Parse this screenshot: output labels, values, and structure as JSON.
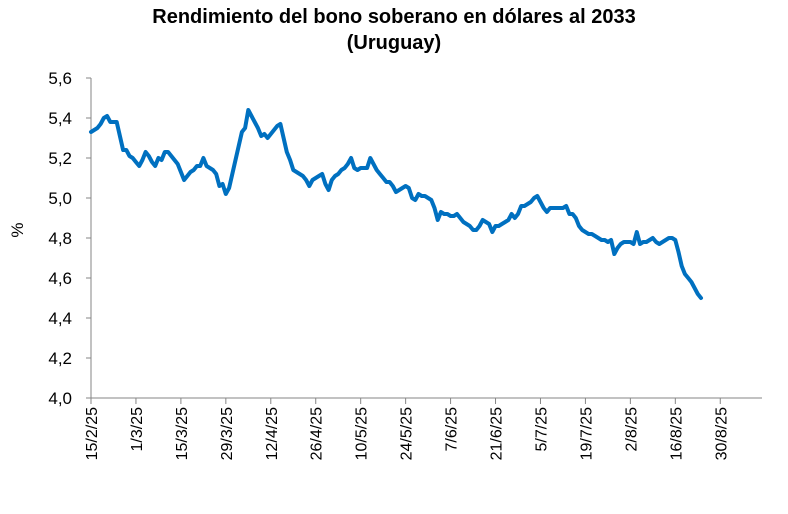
{
  "chart_data": {
    "type": "line",
    "title_line1": "Rendimiento del bono soberano en dólares al 2033",
    "title_line2": "(Uruguay)",
    "xlabel": "",
    "ylabel": "%",
    "ylim": [
      4.0,
      5.6
    ],
    "yticks": [
      "4,0",
      "4,2",
      "4,4",
      "4,6",
      "4,8",
      "5,0",
      "5,2",
      "5,4",
      "5,6"
    ],
    "xticks": [
      "15/2/25",
      "1/3/25",
      "15/3/25",
      "29/3/25",
      "12/4/25",
      "26/4/25",
      "10/5/25",
      "24/5/25",
      "7/6/25",
      "21/6/25",
      "5/7/25",
      "19/7/25",
      "2/8/25",
      "16/8/25",
      "30/8/25"
    ],
    "xtick_days": [
      0,
      14,
      28,
      42,
      56,
      70,
      84,
      98,
      112,
      126,
      140,
      154,
      168,
      182,
      196
    ],
    "x_range_days": [
      0,
      209
    ],
    "grid": false,
    "legend": "none",
    "series": [
      {
        "color": "#0070C0",
        "points": [
          [
            0,
            5.33
          ],
          [
            1,
            5.34
          ],
          [
            2,
            5.35
          ],
          [
            3,
            5.37
          ],
          [
            4,
            5.4
          ],
          [
            5,
            5.41
          ],
          [
            6,
            5.38
          ],
          [
            7,
            5.38
          ],
          [
            8,
            5.38
          ],
          [
            9,
            5.31
          ],
          [
            10,
            5.24
          ],
          [
            11,
            5.24
          ],
          [
            12,
            5.21
          ],
          [
            13,
            5.2
          ],
          [
            14,
            5.18
          ],
          [
            15,
            5.16
          ],
          [
            16,
            5.19
          ],
          [
            17,
            5.23
          ],
          [
            18,
            5.21
          ],
          [
            19,
            5.18
          ],
          [
            20,
            5.16
          ],
          [
            21,
            5.2
          ],
          [
            22,
            5.19
          ],
          [
            23,
            5.23
          ],
          [
            24,
            5.23
          ],
          [
            25,
            5.21
          ],
          [
            26,
            5.19
          ],
          [
            27,
            5.17
          ],
          [
            28,
            5.13
          ],
          [
            29,
            5.09
          ],
          [
            30,
            5.11
          ],
          [
            31,
            5.13
          ],
          [
            32,
            5.14
          ],
          [
            33,
            5.16
          ],
          [
            34,
            5.16
          ],
          [
            35,
            5.2
          ],
          [
            36,
            5.16
          ],
          [
            37,
            5.15
          ],
          [
            38,
            5.14
          ],
          [
            39,
            5.12
          ],
          [
            40,
            5.06
          ],
          [
            41,
            5.07
          ],
          [
            42,
            5.02
          ],
          [
            43,
            5.05
          ],
          [
            44,
            5.12
          ],
          [
            45,
            5.19
          ],
          [
            46,
            5.26
          ],
          [
            47,
            5.33
          ],
          [
            48,
            5.35
          ],
          [
            49,
            5.44
          ],
          [
            50,
            5.41
          ],
          [
            51,
            5.38
          ],
          [
            52,
            5.35
          ],
          [
            53,
            5.31
          ],
          [
            54,
            5.32
          ],
          [
            55,
            5.3
          ],
          [
            56,
            5.32
          ],
          [
            57,
            5.34
          ],
          [
            58,
            5.36
          ],
          [
            59,
            5.37
          ],
          [
            60,
            5.3
          ],
          [
            61,
            5.23
          ],
          [
            62,
            5.19
          ],
          [
            63,
            5.14
          ],
          [
            64,
            5.13
          ],
          [
            65,
            5.12
          ],
          [
            66,
            5.11
          ],
          [
            67,
            5.09
          ],
          [
            68,
            5.06
          ],
          [
            69,
            5.09
          ],
          [
            70,
            5.1
          ],
          [
            71,
            5.11
          ],
          [
            72,
            5.12
          ],
          [
            73,
            5.07
          ],
          [
            74,
            5.04
          ],
          [
            75,
            5.09
          ],
          [
            76,
            5.11
          ],
          [
            77,
            5.12
          ],
          [
            78,
            5.14
          ],
          [
            79,
            5.15
          ],
          [
            80,
            5.17
          ],
          [
            81,
            5.2
          ],
          [
            82,
            5.15
          ],
          [
            83,
            5.14
          ],
          [
            84,
            5.15
          ],
          [
            85,
            5.15
          ],
          [
            86,
            5.15
          ],
          [
            87,
            5.2
          ],
          [
            88,
            5.17
          ],
          [
            89,
            5.14
          ],
          [
            90,
            5.12
          ],
          [
            91,
            5.1
          ],
          [
            92,
            5.08
          ],
          [
            93,
            5.08
          ],
          [
            94,
            5.06
          ],
          [
            95,
            5.03
          ],
          [
            96,
            5.04
          ],
          [
            97,
            5.05
          ],
          [
            98,
            5.06
          ],
          [
            99,
            5.05
          ],
          [
            100,
            5.0
          ],
          [
            101,
            4.99
          ],
          [
            102,
            5.02
          ],
          [
            103,
            5.01
          ],
          [
            104,
            5.01
          ],
          [
            105,
            5.0
          ],
          [
            106,
            4.99
          ],
          [
            107,
            4.95
          ],
          [
            108,
            4.89
          ],
          [
            109,
            4.93
          ],
          [
            110,
            4.92
          ],
          [
            111,
            4.92
          ],
          [
            112,
            4.91
          ],
          [
            113,
            4.91
          ],
          [
            114,
            4.92
          ],
          [
            115,
            4.9
          ],
          [
            116,
            4.88
          ],
          [
            117,
            4.87
          ],
          [
            118,
            4.86
          ],
          [
            119,
            4.84
          ],
          [
            120,
            4.84
          ],
          [
            121,
            4.86
          ],
          [
            122,
            4.89
          ],
          [
            123,
            4.88
          ],
          [
            124,
            4.87
          ],
          [
            125,
            4.83
          ],
          [
            126,
            4.86
          ],
          [
            127,
            4.86
          ],
          [
            128,
            4.87
          ],
          [
            129,
            4.88
          ],
          [
            130,
            4.89
          ],
          [
            131,
            4.92
          ],
          [
            132,
            4.9
          ],
          [
            133,
            4.92
          ],
          [
            134,
            4.96
          ],
          [
            135,
            4.96
          ],
          [
            136,
            4.97
          ],
          [
            137,
            4.98
          ],
          [
            138,
            5.0
          ],
          [
            139,
            5.01
          ],
          [
            140,
            4.98
          ],
          [
            141,
            4.95
          ],
          [
            142,
            4.93
          ],
          [
            143,
            4.95
          ],
          [
            144,
            4.95
          ],
          [
            145,
            4.95
          ],
          [
            146,
            4.95
          ],
          [
            147,
            4.95
          ],
          [
            148,
            4.96
          ],
          [
            149,
            4.92
          ],
          [
            150,
            4.92
          ],
          [
            151,
            4.9
          ],
          [
            152,
            4.86
          ],
          [
            153,
            4.84
          ],
          [
            154,
            4.83
          ],
          [
            155,
            4.82
          ],
          [
            156,
            4.82
          ],
          [
            157,
            4.81
          ],
          [
            158,
            4.8
          ],
          [
            159,
            4.79
          ],
          [
            160,
            4.79
          ],
          [
            161,
            4.78
          ],
          [
            162,
            4.79
          ],
          [
            163,
            4.72
          ],
          [
            164,
            4.75
          ],
          [
            165,
            4.77
          ],
          [
            166,
            4.78
          ],
          [
            167,
            4.78
          ],
          [
            168,
            4.78
          ],
          [
            169,
            4.77
          ],
          [
            170,
            4.83
          ],
          [
            171,
            4.77
          ],
          [
            172,
            4.78
          ],
          [
            173,
            4.78
          ],
          [
            174,
            4.79
          ],
          [
            175,
            4.8
          ],
          [
            176,
            4.78
          ],
          [
            177,
            4.77
          ],
          [
            178,
            4.78
          ],
          [
            179,
            4.79
          ],
          [
            180,
            4.8
          ],
          [
            181,
            4.8
          ],
          [
            182,
            4.79
          ],
          [
            183,
            4.73
          ],
          [
            184,
            4.66
          ],
          [
            185,
            4.62
          ],
          [
            186,
            4.6
          ],
          [
            187,
            4.58
          ],
          [
            188,
            4.55
          ],
          [
            189,
            4.52
          ],
          [
            190,
            4.5
          ]
        ]
      }
    ]
  }
}
